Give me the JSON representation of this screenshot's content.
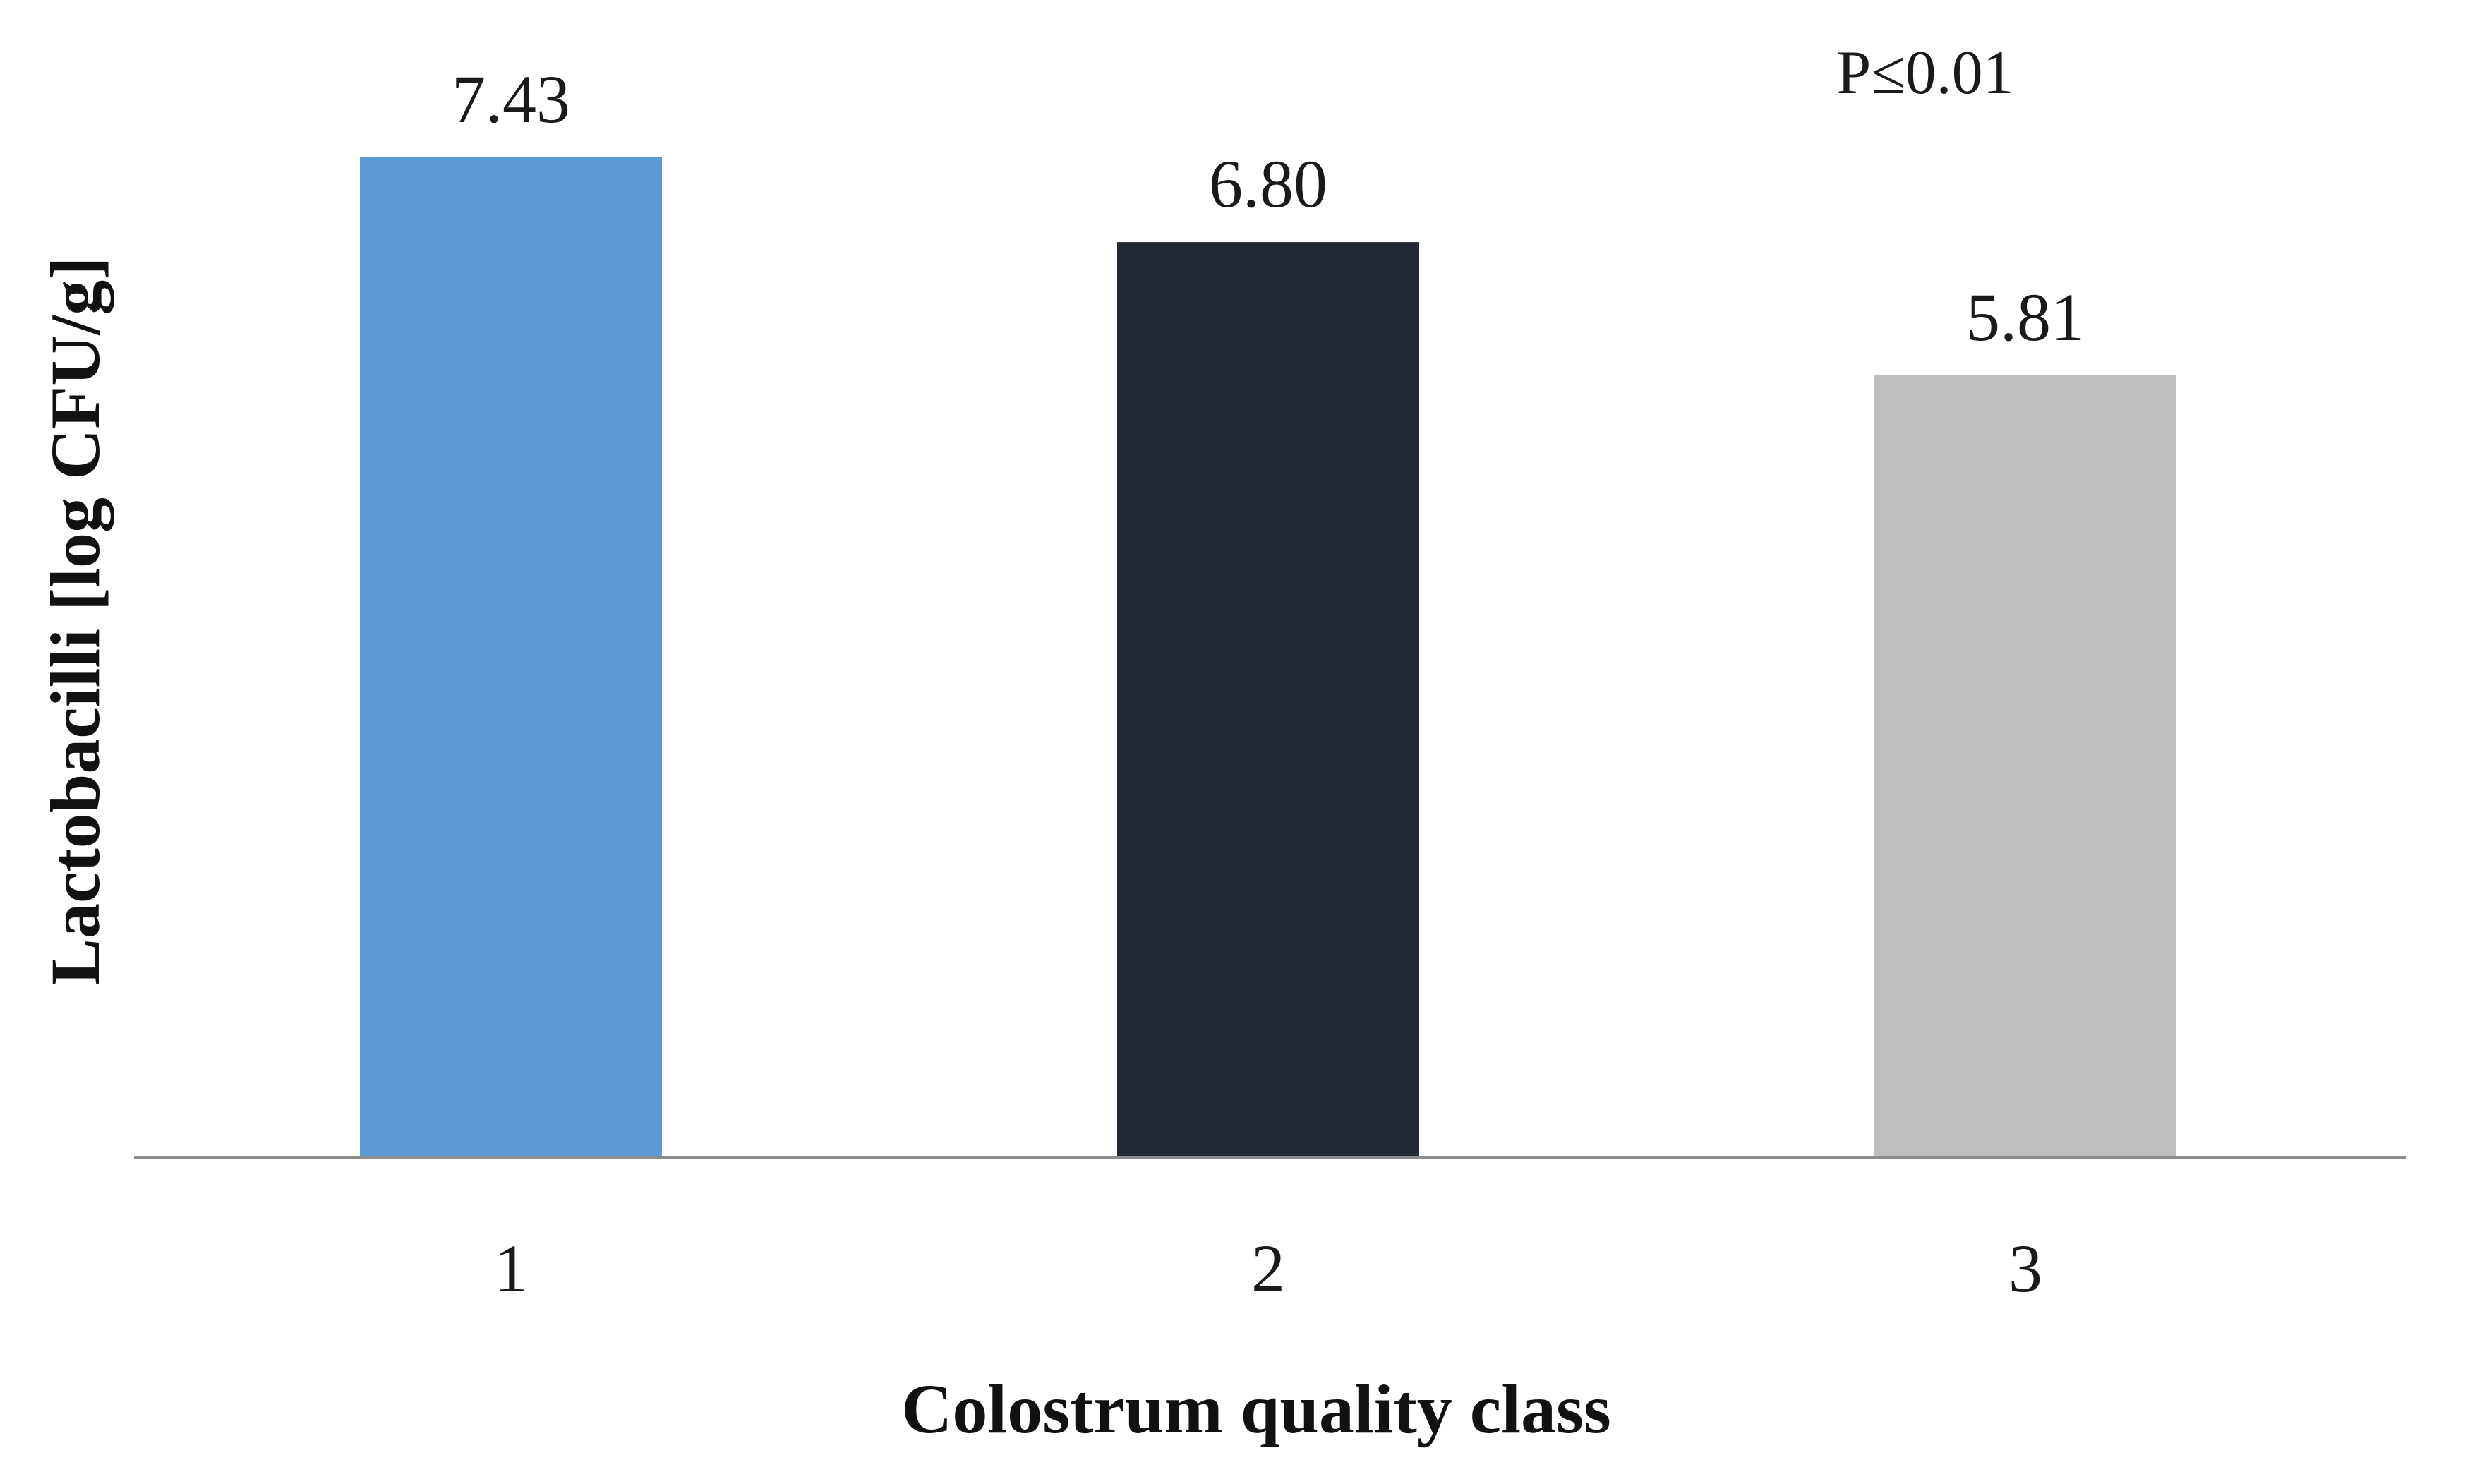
{
  "chart_data": {
    "type": "bar",
    "categories": [
      "1",
      "2",
      "3"
    ],
    "values": [
      7.43,
      6.8,
      5.81
    ],
    "value_labels": [
      "7.43",
      "6.80",
      "5.81"
    ],
    "colors": [
      "#5b9bd5",
      "#242a35",
      "#bfbfbf"
    ],
    "xlabel": "Colostrum quality class",
    "ylabel": "Lactobacilli [log CFU/g]",
    "annotation": "P≤0.01",
    "ylim": [
      0,
      8.5
    ],
    "grid": false,
    "y_tick_labels_shown": false,
    "axis_color": "#8c8c8c"
  }
}
